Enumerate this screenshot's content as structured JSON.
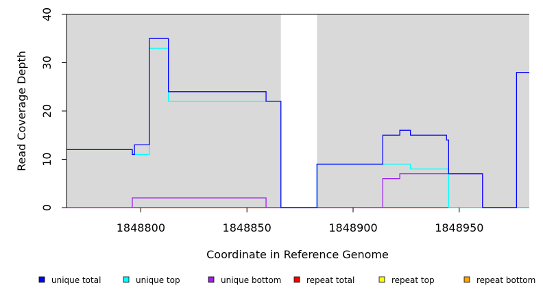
{
  "chart_data": {
    "type": "line",
    "style": "step",
    "title": "",
    "xlabel": "Coordinate in Reference Genome",
    "ylabel": "Read Coverage Depth",
    "xlim": [
      1848765,
      1848983
    ],
    "ylim": [
      0,
      40
    ],
    "x_ticks": [
      1848800,
      1848850,
      1848900,
      1848950
    ],
    "x_tick_labels": [
      "1848800",
      "1848850",
      "1848900",
      "1848950"
    ],
    "y_ticks": [
      0,
      10,
      20,
      30,
      40
    ],
    "y_tick_labels": [
      "0",
      "10",
      "20",
      "30",
      "40"
    ],
    "grid": false,
    "background_color": "#d9d9d9",
    "gap_background_color": "#ffffff",
    "background_regions": [
      [
        1848765,
        1848866
      ],
      [
        1848883,
        1848983
      ]
    ],
    "legend_position": "bottom",
    "series": [
      {
        "name": "unique total",
        "color": "#0000ff",
        "points": [
          [
            1848765,
            12
          ],
          [
            1848796,
            12
          ],
          [
            1848796,
            11
          ],
          [
            1848797,
            11
          ],
          [
            1848797,
            13
          ],
          [
            1848804,
            13
          ],
          [
            1848804,
            35
          ],
          [
            1848813,
            35
          ],
          [
            1848813,
            24
          ],
          [
            1848859,
            24
          ],
          [
            1848859,
            22
          ],
          [
            1848866,
            22
          ],
          [
            1848866,
            0
          ],
          [
            1848883,
            0
          ],
          [
            1848883,
            9
          ],
          [
            1848914,
            9
          ],
          [
            1848914,
            15
          ],
          [
            1848922,
            15
          ],
          [
            1848922,
            16
          ],
          [
            1848927,
            16
          ],
          [
            1848927,
            15
          ],
          [
            1848944,
            15
          ],
          [
            1848944,
            14
          ],
          [
            1848945,
            14
          ],
          [
            1848945,
            7
          ],
          [
            1848961,
            7
          ],
          [
            1848961,
            0
          ],
          [
            1848977,
            0
          ],
          [
            1848977,
            28
          ],
          [
            1848983,
            28
          ]
        ]
      },
      {
        "name": "unique top",
        "color": "#00ffff",
        "points": [
          [
            1848765,
            12
          ],
          [
            1848796,
            12
          ],
          [
            1848796,
            11
          ],
          [
            1848804,
            11
          ],
          [
            1848804,
            33
          ],
          [
            1848813,
            33
          ],
          [
            1848813,
            22
          ],
          [
            1848866,
            22
          ],
          [
            1848866,
            0
          ],
          [
            1848883,
            0
          ],
          [
            1848883,
            9
          ],
          [
            1848927,
            9
          ],
          [
            1848927,
            8
          ],
          [
            1848945,
            8
          ],
          [
            1848945,
            0
          ],
          [
            1848983,
            0
          ]
        ]
      },
      {
        "name": "unique bottom",
        "color": "#a020f0",
        "points": [
          [
            1848765,
            0
          ],
          [
            1848796,
            0
          ],
          [
            1848796,
            2
          ],
          [
            1848859,
            2
          ],
          [
            1848859,
            0
          ],
          [
            1848914,
            0
          ],
          [
            1848914,
            6
          ],
          [
            1848922,
            6
          ],
          [
            1848922,
            7
          ],
          [
            1848961,
            7
          ],
          [
            1848961,
            0
          ],
          [
            1848983,
            0
          ]
        ]
      },
      {
        "name": "repeat total",
        "color": "#ff0000",
        "points": [
          [
            1848765,
            0
          ],
          [
            1848983,
            0
          ]
        ]
      },
      {
        "name": "repeat top",
        "color": "#ffff00",
        "points": [
          [
            1848765,
            0
          ],
          [
            1848983,
            0
          ]
        ]
      },
      {
        "name": "repeat bottom",
        "color": "#ffa500",
        "points": [
          [
            1848796,
            0
          ],
          [
            1848859,
            0
          ],
          [
            1848914,
            0
          ],
          [
            1848961,
            0
          ]
        ]
      }
    ]
  }
}
